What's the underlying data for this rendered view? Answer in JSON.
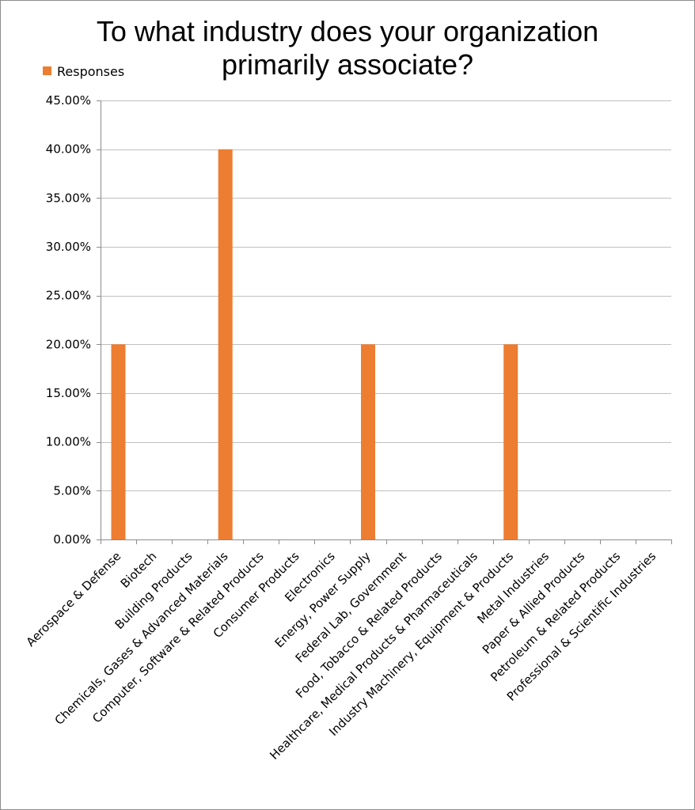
{
  "chart_data": {
    "type": "bar",
    "title_lines": [
      "To what industry does your organization",
      "primarily associate?"
    ],
    "xlabel": "",
    "ylabel": "",
    "categories": [
      "Aerospace & Defense",
      "Biotech",
      "Building Products",
      "Chemicals, Gases & Advanced Materials",
      "Computer, Software & Related Products",
      "Consumer Products",
      "Electronics",
      "Energy, Power Supply",
      "Federal Lab, Government",
      "Food, Tobacco & Related Products",
      "Healthcare, Medical Products & Pharmaceuticals",
      "Industry Machinery, Equipment & Products",
      "Metal Industries",
      "Paper & Allied Products",
      "Petroleum & Related Products",
      "Professional & Scientific Industries"
    ],
    "series": [
      {
        "name": "Responses",
        "color": "#ed7d31",
        "values": [
          0.2,
          0,
          0,
          0.4,
          0,
          0,
          0,
          0.2,
          0,
          0,
          0,
          0.2,
          0,
          0,
          0,
          0
        ]
      }
    ],
    "ylim": [
      0,
      0.45
    ],
    "yticks": [
      0,
      0.05,
      0.1,
      0.15,
      0.2,
      0.25,
      0.3,
      0.35,
      0.4,
      0.45
    ],
    "ytick_labels": [
      "0.00%",
      "5.00%",
      "10.00%",
      "15.00%",
      "20.00%",
      "25.00%",
      "30.00%",
      "35.00%",
      "40.00%",
      "45.00%"
    ],
    "grid": true,
    "legend_position": "top-left",
    "gridline_color": "#bfbfbf",
    "axis_color": "#8c8c8c"
  }
}
